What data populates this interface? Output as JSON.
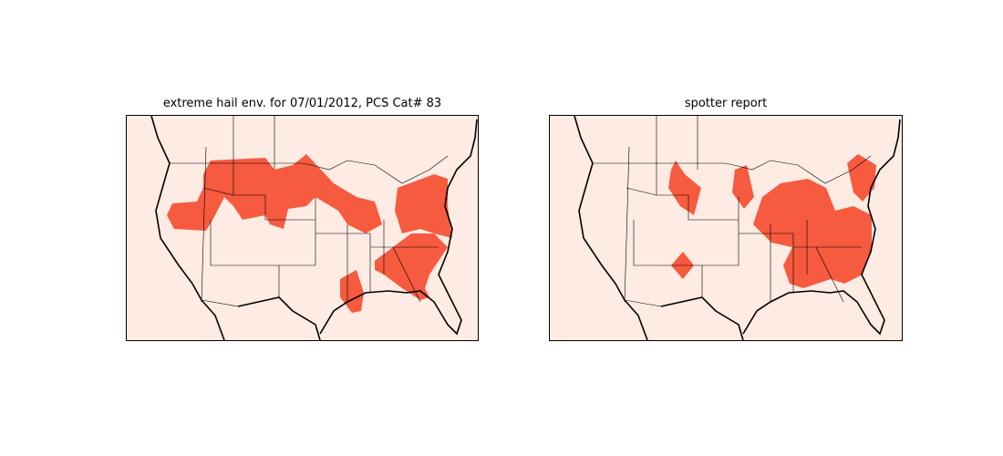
{
  "figure": {
    "left_panel": {
      "title": "extreme hail env. for 07/01/2012, PCS Cat# 83"
    },
    "right_panel": {
      "title": "spotter report"
    }
  },
  "colors": {
    "land": "#feebe3",
    "highlight": "#f65a3f",
    "lines": "#000000"
  }
}
